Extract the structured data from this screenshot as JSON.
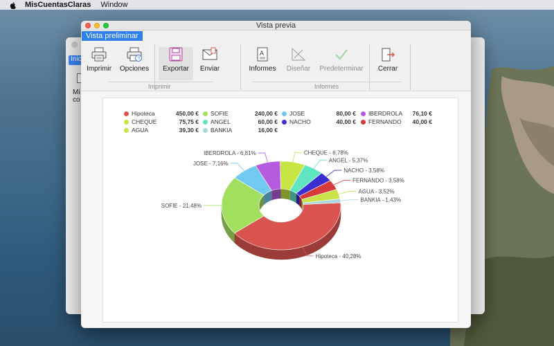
{
  "menubar": {
    "app_name": "MisCuentasClaras",
    "menu_window": "Window"
  },
  "background_window": {
    "tab_label": "Inici",
    "item_label_line1": "Mi",
    "item_label_line2": "co"
  },
  "window": {
    "title": "Vista previa",
    "tab": "Vista preliminar"
  },
  "toolbar": {
    "imprimir": "Imprimir",
    "opciones": "Opciones",
    "exportar": "Exportar",
    "enviar": "Enviar",
    "informes": "Informes",
    "disenar": "Diseñar",
    "predeterminar": "Predeterminar",
    "cerrar": "Cerrar",
    "group_imprimir": "Imprimir",
    "group_informes": "Informes"
  },
  "chart_data": {
    "type": "pie",
    "style": "3d-donut",
    "legend_placement": "top",
    "legend": [
      {
        "label": "Hipoteca",
        "value_label": "450,00 €",
        "color": "#d9534f"
      },
      {
        "label": "SOFIE",
        "value_label": "240,00 €",
        "color": "#a3df5f"
      },
      {
        "label": "JOSE",
        "value_label": "80,00 €",
        "color": "#72c9ef"
      },
      {
        "label": "IBERDROLA",
        "value_label": "76,10 €",
        "color": "#b45bdf"
      },
      {
        "label": "CHEQUE",
        "value_label": "75,75 €",
        "color": "#c6e444"
      },
      {
        "label": "ANGEL",
        "value_label": "60,00 €",
        "color": "#5fe6c0"
      },
      {
        "label": "NACHO",
        "value_label": "40,00 €",
        "color": "#3b2ed1"
      },
      {
        "label": "FERNANDO",
        "value_label": "40,00 €",
        "color": "#d63a3a"
      },
      {
        "label": "AGUA",
        "value_label": "39,30 €",
        "color": "#c9e24a"
      },
      {
        "label": "BANKIA",
        "value_label": "16,00 €",
        "color": "#a9d6df"
      }
    ],
    "slices": [
      {
        "name": "Hipoteca",
        "percent": 40.28,
        "label": "Hipoteca - 40,28%",
        "color": "#d9534f"
      },
      {
        "name": "SOFIE",
        "percent": 21.48,
        "label": "SOFIE - 21,48%",
        "color": "#a3df5f"
      },
      {
        "name": "JOSE",
        "percent": 7.16,
        "label": "JOSE - 7,16%",
        "color": "#72c9ef"
      },
      {
        "name": "IBERDROLA",
        "percent": 6.81,
        "label": "IBERDROLA - 6,81%",
        "color": "#b45bdf"
      },
      {
        "name": "CHEQUE",
        "percent": 6.78,
        "label": "CHEQUE - 6,78%",
        "color": "#c6e444"
      },
      {
        "name": "ANGEL",
        "percent": 5.37,
        "label": "ANGEL - 5,37%",
        "color": "#5fe6c0"
      },
      {
        "name": "NACHO",
        "percent": 3.58,
        "label": "NACHO - 3,58%",
        "color": "#3b2ed1"
      },
      {
        "name": "FERNANDO",
        "percent": 3.58,
        "label": "FERNANDO - 3,58%",
        "color": "#d63a3a"
      },
      {
        "name": "AGUA",
        "percent": 3.52,
        "label": "AGUA - 3,52%",
        "color": "#c9e24a"
      },
      {
        "name": "BANKIA",
        "percent": 1.43,
        "label": "BANKIA - 1,43%",
        "color": "#a9d6df"
      }
    ]
  }
}
